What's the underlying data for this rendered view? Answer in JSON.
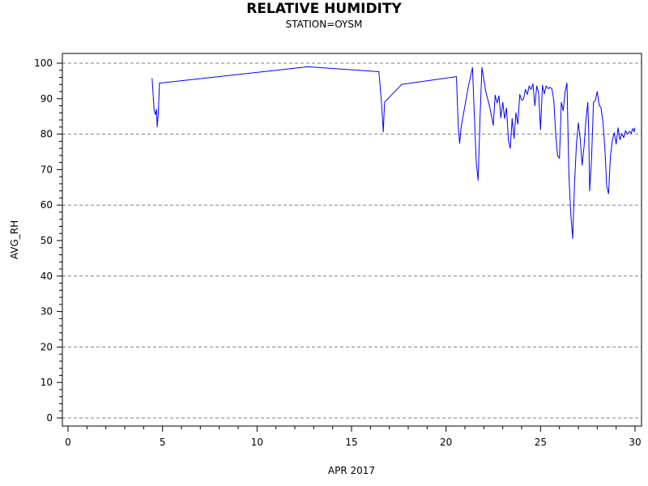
{
  "chart_data": {
    "type": "line",
    "title": "RELATIVE HUMIDITY",
    "subtitle": "STATION=OYSM",
    "xlabel": "APR 2017",
    "ylabel": "AVG_RH",
    "xlim": [
      0,
      30
    ],
    "ylim": [
      0,
      100
    ],
    "xticks": [
      0,
      5,
      10,
      15,
      20,
      25,
      30
    ],
    "yticks": [
      0,
      10,
      20,
      30,
      40,
      50,
      60,
      70,
      80,
      90,
      100
    ],
    "grid_y_dashed": [
      0,
      20,
      40,
      60,
      80,
      100
    ],
    "series": [
      {
        "color": "#0000ff",
        "x": [
          4.45,
          4.55,
          4.62,
          4.68,
          4.72,
          4.78,
          4.84,
          4.9,
          12.7,
          16.45,
          16.6,
          16.68,
          16.75,
          17.65,
          20.55,
          20.65,
          20.72,
          20.8,
          21.0,
          21.2,
          21.4,
          21.5,
          21.6,
          21.7,
          21.8,
          21.9,
          22.1,
          22.3,
          22.5,
          22.6,
          22.7,
          22.8,
          22.9,
          23.0,
          23.1,
          23.2,
          23.3,
          23.4,
          23.5,
          23.6,
          23.7,
          23.8,
          23.9,
          24.0,
          24.1,
          24.2,
          24.3,
          24.4,
          24.5,
          24.6,
          24.7,
          24.8,
          24.9,
          25.0,
          25.1,
          25.2,
          25.3,
          25.4,
          25.5,
          25.6,
          25.7,
          25.8,
          25.9,
          26.0,
          26.1,
          26.2,
          26.3,
          26.4,
          26.5,
          26.6,
          26.7,
          26.8,
          26.9,
          27.0,
          27.1,
          27.2,
          27.3,
          27.4,
          27.5,
          27.55,
          27.6,
          27.7,
          27.8,
          27.9,
          28.0,
          28.1,
          28.2,
          28.3,
          28.4,
          28.5,
          28.6,
          28.7,
          28.8,
          28.9,
          29.0,
          29.1,
          29.2,
          29.3,
          29.4,
          29.5,
          29.6,
          29.7,
          29.8,
          29.85,
          29.9,
          29.95,
          30.0
        ],
        "y": [
          95.8,
          87,
          85.5,
          87,
          82,
          86,
          94.4,
          94.4,
          99,
          97.6,
          88,
          80.6,
          89,
          94,
          96.2,
          82,
          77.4,
          82,
          88,
          94,
          98.8,
          85,
          72,
          67,
          85,
          98.8,
          92,
          88,
          82.5,
          91,
          88.8,
          90.8,
          84.6,
          89,
          84.4,
          87.4,
          78.2,
          76,
          84.4,
          78.8,
          86,
          82.8,
          91.2,
          89.6,
          89.8,
          92.6,
          91.2,
          93.6,
          92.6,
          94.2,
          88,
          93.6,
          91.6,
          81.2,
          93.8,
          91.4,
          93.6,
          92.8,
          93.2,
          92.8,
          89.6,
          80.2,
          74,
          73.2,
          89,
          86.6,
          92,
          94.4,
          68.8,
          57.4,
          50.6,
          66,
          77.4,
          83.2,
          78.8,
          71.2,
          76.4,
          83.8,
          89,
          80.6,
          64,
          73,
          89,
          89.4,
          92,
          88.2,
          87.4,
          83.6,
          76.4,
          65.4,
          63.2,
          74,
          78.2,
          80.4,
          77.2,
          81.8,
          78.4,
          80.2,
          79,
          81,
          80,
          80.8,
          80.2,
          81.2,
          81.6,
          80.6,
          81.8
        ]
      }
    ]
  }
}
